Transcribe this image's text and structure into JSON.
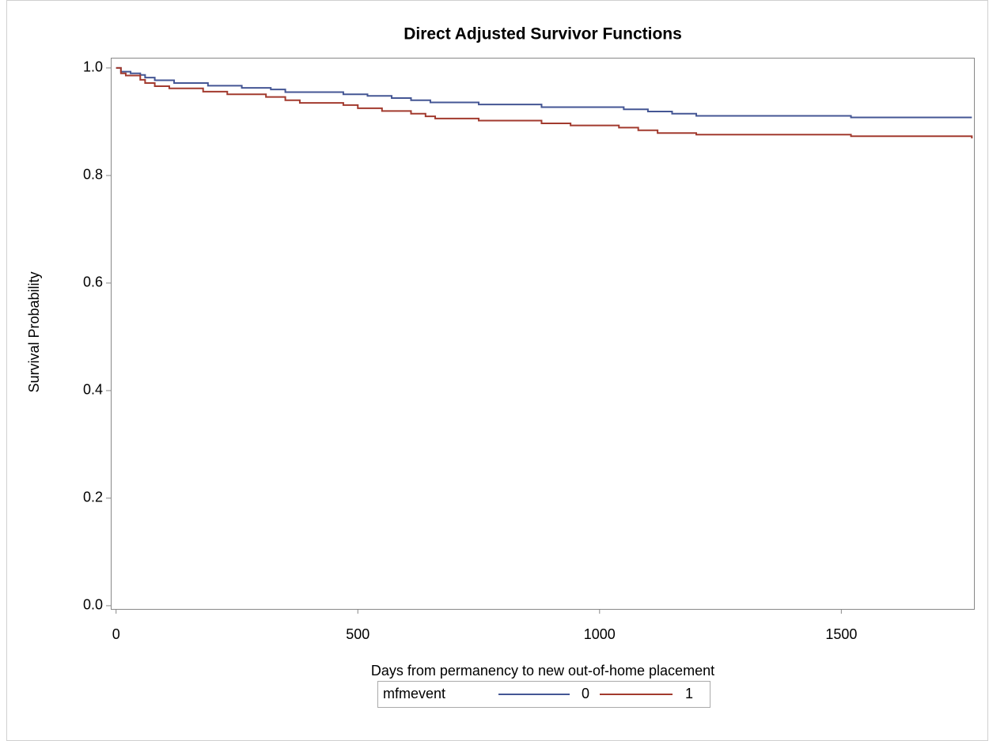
{
  "chart_data": {
    "type": "step",
    "title": "Direct Adjusted Survivor Functions",
    "x_label": "Days from permanency to new out-of-home placement",
    "y_label": "Survival Probability",
    "legend_title": "mfmevent",
    "legend_position": "bottom",
    "xlim": [
      -11,
      1776
    ],
    "ylim": [
      -0.006,
      1.019
    ],
    "xticks": [
      0,
      500,
      1000,
      1500
    ],
    "yticks": [
      {
        "value": 0,
        "label": "0.0"
      },
      0.2,
      0.4,
      0.6,
      0.8,
      {
        "value": 1,
        "label": "1.0"
      }
    ],
    "series": [
      {
        "name": "0",
        "color": "#445694",
        "x": [
          0,
          10,
          30,
          50,
          60,
          80,
          120,
          190,
          260,
          320,
          350,
          470,
          520,
          570,
          610,
          650,
          750,
          880,
          1050,
          1100,
          1150,
          1200,
          1520,
          1770
        ],
        "values": [
          1.0,
          0.993,
          0.99,
          0.987,
          0.982,
          0.977,
          0.972,
          0.967,
          0.963,
          0.96,
          0.955,
          0.951,
          0.948,
          0.944,
          0.94,
          0.936,
          0.932,
          0.927,
          0.923,
          0.919,
          0.915,
          0.911,
          0.908,
          0.908
        ]
      },
      {
        "name": "1",
        "color": "#a23a2e",
        "x": [
          0,
          10,
          20,
          50,
          60,
          80,
          110,
          180,
          230,
          310,
          350,
          380,
          470,
          500,
          550,
          610,
          640,
          660,
          750,
          880,
          940,
          1040,
          1080,
          1120,
          1200,
          1520,
          1770
        ],
        "values": [
          1.0,
          0.99,
          0.986,
          0.978,
          0.972,
          0.966,
          0.962,
          0.956,
          0.951,
          0.946,
          0.94,
          0.935,
          0.931,
          0.925,
          0.92,
          0.915,
          0.91,
          0.906,
          0.902,
          0.897,
          0.893,
          0.889,
          0.884,
          0.879,
          0.876,
          0.873,
          0.869
        ]
      }
    ]
  }
}
